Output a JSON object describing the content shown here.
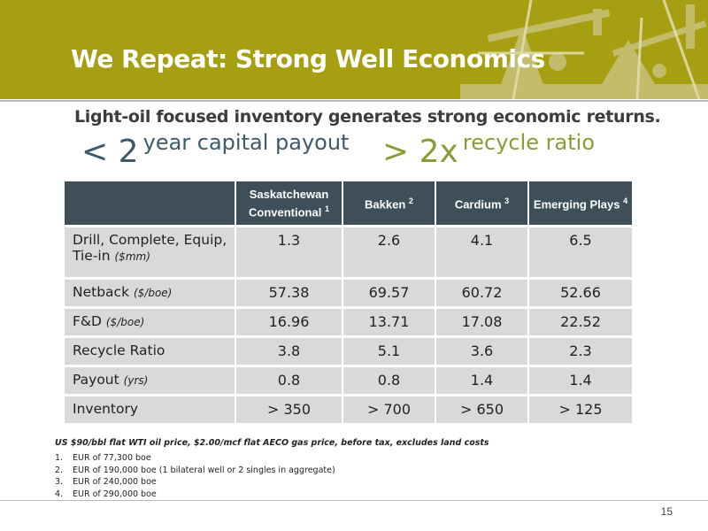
{
  "slide": {
    "title": "We Repeat: Strong Well Economics",
    "subtitle": "Light-oil focused inventory generates strong economic returns.",
    "stat1": {
      "big": "< 2",
      "small": "year capital payout"
    },
    "stat2": {
      "big": "> 2x",
      "small": "recycle ratio"
    },
    "page_number": "15"
  },
  "table": {
    "headers": [
      {
        "text": "",
        "sup": ""
      },
      {
        "text": "Saskatchewan Conventional",
        "sup": "1"
      },
      {
        "text": "Bakken",
        "sup": "2"
      },
      {
        "text": "Cardium",
        "sup": "3"
      },
      {
        "text": "Emerging Plays",
        "sup": "4"
      }
    ],
    "rows": [
      {
        "label": "Drill, Complete, Equip, Tie-in",
        "unit": "($mm)",
        "values": [
          "1.3",
          "2.6",
          "4.1",
          "6.5"
        ]
      },
      {
        "label": "Netback",
        "unit": "($/boe)",
        "values": [
          "57.38",
          "69.57",
          "60.72",
          "52.66"
        ]
      },
      {
        "label": "F&D",
        "unit": "($/boe)",
        "values": [
          "16.96",
          "13.71",
          "17.08",
          "22.52"
        ]
      },
      {
        "label": "Recycle Ratio",
        "unit": "",
        "values": [
          "3.8",
          "5.1",
          "3.6",
          "2.3"
        ]
      },
      {
        "label": "Payout",
        "unit": "(yrs)",
        "values": [
          "0.8",
          "0.8",
          "1.4",
          "1.4"
        ]
      },
      {
        "label": "Inventory",
        "unit": "",
        "values": [
          "> 350",
          "> 700",
          "> 650",
          "> 125"
        ]
      }
    ]
  },
  "footnotes": {
    "main": "US $90/bbl flat WTI oil price, $2.00/mcf flat AECO gas price, before tax, excludes land costs",
    "items": [
      "EUR of 77,300 boe",
      "EUR of 190,000 boe (1 bilateral well or 2 singles in aggregate)",
      "EUR of 240,000 boe",
      "EUR of 290,000 boe"
    ]
  },
  "colors": {
    "header_band": "#a79f12",
    "table_header": "#3e4f59",
    "table_cell": "#d9d9d9",
    "stat1_color": "#3c5a6a",
    "stat2_color": "#8c9a38"
  }
}
